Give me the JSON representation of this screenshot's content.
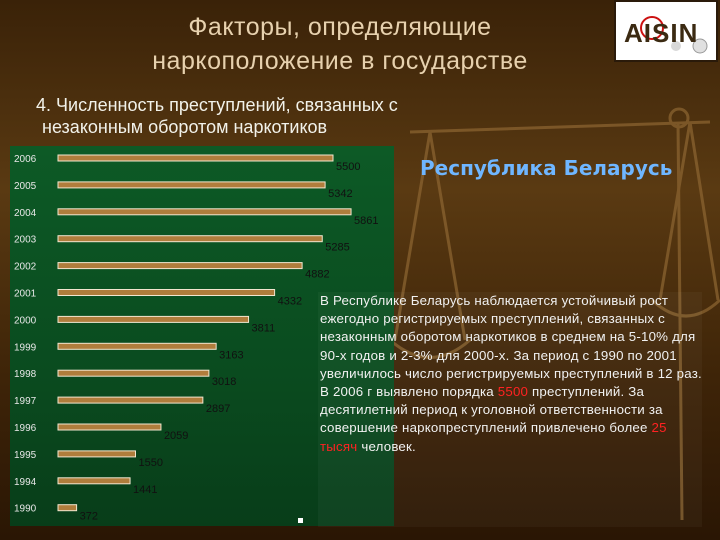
{
  "slide": {
    "title_line1": "Факторы, определяющие",
    "title_line2": "наркоположение в государстве",
    "subtitle_line1": "4. Численность преступлений, связанных с",
    "subtitle_line2": "незаконным оборотом наркотиков",
    "republic_label": "Республика Беларусь",
    "logo_text": "AISIN"
  },
  "text_block": {
    "part1": "В Республике Беларусь наблюдается устойчивый рост ежегодно регистрируемых преступлений, связанных с незаконным оборотом наркотиков в среднем на 5-10% для 90-х годов и 2-3% для 2000-х. За период с 1990 по 2001 увеличилось число регистрируемых преступлений в 12 раз. В 2006 г выявлено порядка ",
    "highlight1": "5500",
    "part2": " преступлений. За десятилетний период к уголовной ответственности за совершение наркопреступлений привлечено более ",
    "highlight2": "25 тысяч",
    "part3": " человек."
  },
  "colors": {
    "background": "#4a2c0c",
    "chart_panel": "#0b4f21",
    "bar_fill": "#b07d3c",
    "title_text": "#e7d1ae",
    "republic_text": "#6fb6ff",
    "highlight": "#ff2222"
  },
  "chart_data": {
    "type": "bar",
    "orientation": "horizontal",
    "categories": [
      "2006",
      "2005",
      "2004",
      "2003",
      "2002",
      "2001",
      "2000",
      "1999",
      "1998",
      "1997",
      "1996",
      "1995",
      "1994",
      "1990"
    ],
    "values": [
      5500,
      5342,
      5861,
      5285,
      4882,
      4332,
      3811,
      3163,
      3018,
      2897,
      2059,
      1550,
      1441,
      372
    ],
    "title": "",
    "xlabel": "",
    "ylabel": "",
    "xlim": [
      0,
      6000
    ],
    "grid": false,
    "legend": "none"
  }
}
